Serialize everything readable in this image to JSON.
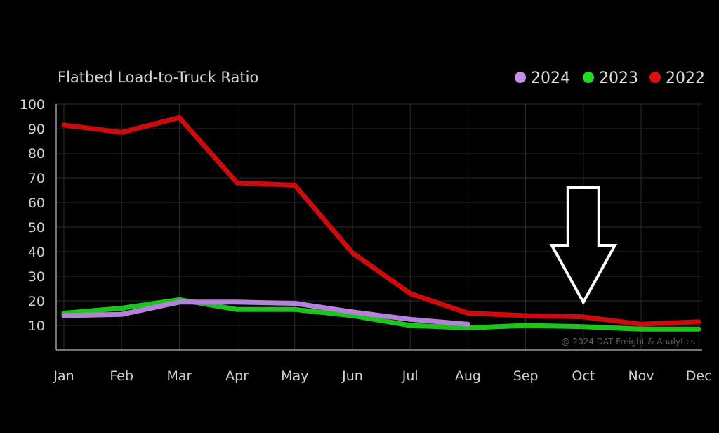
{
  "chart_data": {
    "type": "line",
    "title": "Flatbed Load-to-Truck Ratio",
    "xlabel": "",
    "ylabel": "",
    "categories": [
      "Jan",
      "Feb",
      "Mar",
      "Apr",
      "May",
      "Jun",
      "Jul",
      "Aug",
      "Sep",
      "Oct",
      "Nov",
      "Dec"
    ],
    "y_ticks": [
      "100",
      "90",
      "80",
      "70",
      "60",
      "50",
      "40",
      "30",
      "20",
      "10"
    ],
    "ylim": [
      0,
      100
    ],
    "grid": true,
    "legend_position": "top-right",
    "series": [
      {
        "name": "2024",
        "color": "#c58fe6",
        "line_color": "#b482d8",
        "values": [
          14,
          14.5,
          19.5,
          19.5,
          19,
          15.5,
          12.5,
          10.5,
          null,
          null,
          null,
          null
        ]
      },
      {
        "name": "2023",
        "color": "#22dd22",
        "line_color": "#1cc41c",
        "values": [
          15,
          17,
          20.5,
          16.5,
          16.5,
          14,
          10,
          9,
          10,
          9.5,
          8.5,
          8.5
        ]
      },
      {
        "name": "2022",
        "color": "#e01010",
        "line_color": "#cc0c0c",
        "values": [
          91.5,
          88.5,
          94.5,
          68,
          67,
          39.5,
          23,
          15,
          14,
          13.5,
          10.5,
          11.5
        ]
      }
    ],
    "legend_order": [
      "2024",
      "2023",
      "2022"
    ],
    "annotation": {
      "type": "down-arrow",
      "category": "Oct",
      "points_to_value": 13.5
    },
    "watermark": "@ 2024 DAT Freight & Analytics"
  }
}
